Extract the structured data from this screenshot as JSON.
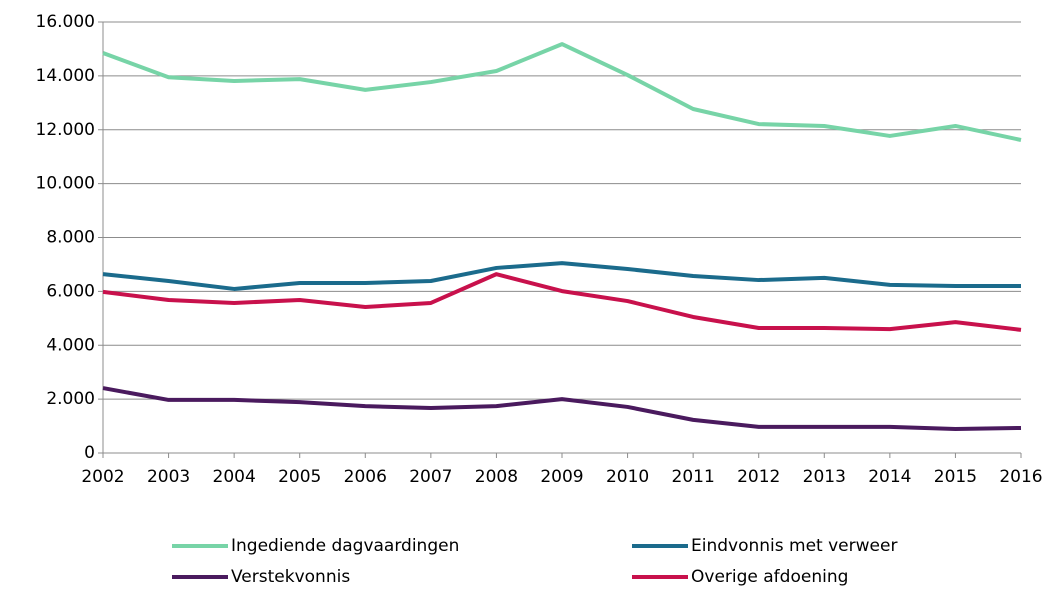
{
  "chart_data": {
    "type": "line",
    "categories": [
      "2002",
      "2003",
      "2004",
      "2005",
      "2006",
      "2007",
      "2008",
      "2009",
      "2010",
      "2011",
      "2012",
      "2013",
      "2014",
      "2015",
      "2016"
    ],
    "series": [
      {
        "name": "Ingediende dagvaardingen",
        "color": "#77d4a7",
        "values": [
          14850,
          13950,
          13810,
          13880,
          13480,
          13770,
          14180,
          15180,
          14030,
          12770,
          12210,
          12140,
          11770,
          12140,
          11620
        ]
      },
      {
        "name": "Eindvonnis met verweer",
        "color": "#1b6b8c",
        "values": [
          6640,
          6385,
          6090,
          6310,
          6310,
          6385,
          6870,
          7050,
          6830,
          6570,
          6420,
          6500,
          6240,
          6200,
          6200
        ]
      },
      {
        "name": "Verstekvonnis",
        "color": "#4a1a5e",
        "values": [
          2410,
          1970,
          1970,
          1890,
          1740,
          1670,
          1740,
          2000,
          1710,
          1230,
          970,
          970,
          970,
          890,
          930
        ]
      },
      {
        "name": "Overige afdoening",
        "color": "#c8114c",
        "values": [
          5980,
          5680,
          5570,
          5680,
          5420,
          5570,
          6640,
          6010,
          5640,
          5050,
          4640,
          4640,
          4600,
          4860,
          4570
        ]
      }
    ],
    "ylim": [
      0,
      16000
    ],
    "yticks": [
      0,
      {
        "value": 2000,
        "label": "2.000"
      },
      {
        "value": 4000,
        "label": "4.000"
      },
      {
        "value": 6000,
        "label": "6.000"
      },
      {
        "value": 8000,
        "label": "8.000"
      },
      {
        "value": 10000,
        "label": "10.000"
      },
      {
        "value": 12000,
        "label": "12.000"
      },
      {
        "value": 14000,
        "label": "14.000"
      },
      {
        "value": 16000,
        "label": "16.000"
      }
    ],
    "grid": true,
    "legend": "bottom"
  }
}
